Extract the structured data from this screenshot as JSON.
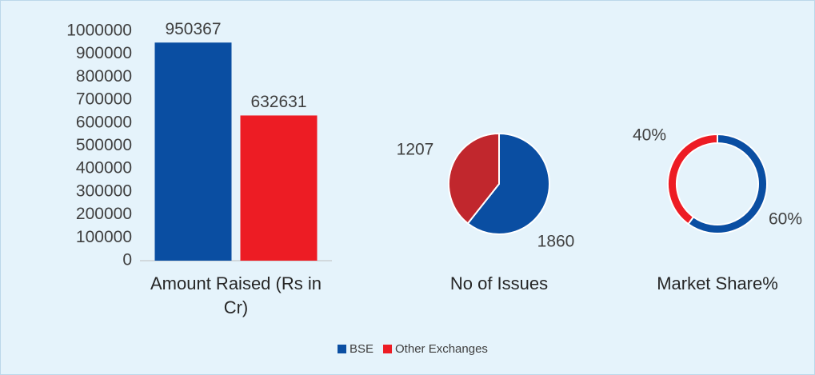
{
  "chart_data": [
    {
      "type": "bar",
      "categories": [
        "Amount Raised (Rs in Cr)"
      ],
      "series": [
        {
          "name": "BSE",
          "color": "#0a4ea2",
          "values": [
            950367
          ]
        },
        {
          "name": "Other Exchanges",
          "color": "#ed1c24",
          "values": [
            632631
          ]
        }
      ],
      "ylim": [
        0,
        1000000
      ],
      "yticks": [
        0,
        100000,
        200000,
        300000,
        400000,
        500000,
        600000,
        700000,
        800000,
        900000,
        1000000
      ]
    },
    {
      "type": "pie",
      "title": "No of Issues",
      "values": [
        1860,
        1207
      ],
      "colors": [
        "#0a4ea2",
        "#c1272d"
      ]
    },
    {
      "type": "donut",
      "title": "Market Share%",
      "values": [
        60,
        40
      ],
      "value_labels": [
        "60%",
        "40%"
      ],
      "colors": [
        "#0a4ea2",
        "#ed1c24"
      ]
    }
  ]
}
